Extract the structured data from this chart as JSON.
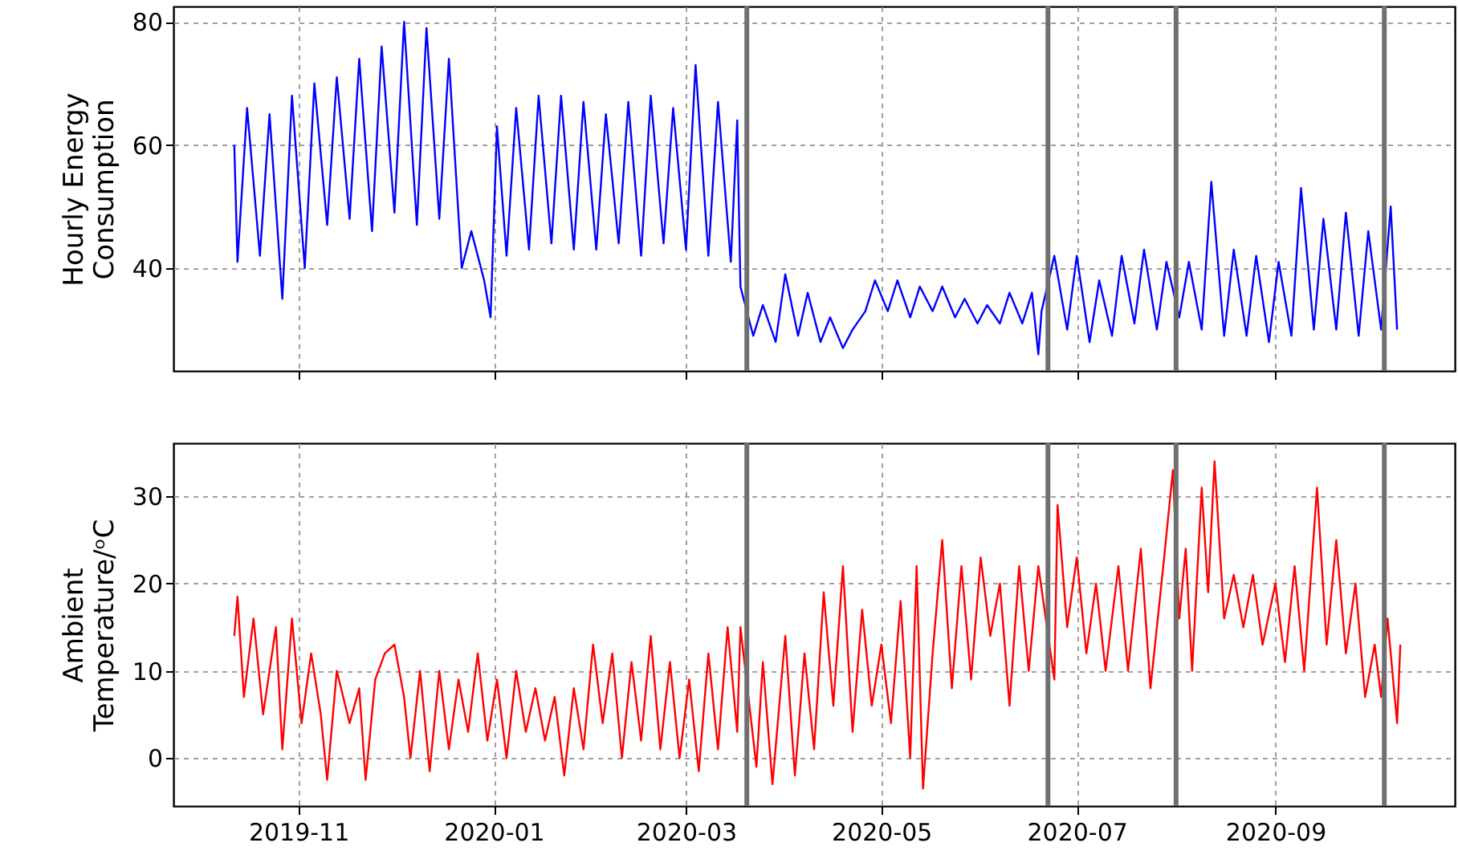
{
  "chart_data": [
    {
      "type": "line",
      "ylabel": "Hourly Energy\nConsumption",
      "xlim": [
        "2019-09-23",
        "2020-10-27"
      ],
      "ylim": [
        23.3,
        82.5
      ],
      "yticks": [
        40,
        60,
        80
      ],
      "xticks": [
        {
          "value": "2019-11-01",
          "label": null
        },
        {
          "value": "2020-01-01",
          "label": null
        },
        {
          "value": "2020-03-01",
          "label": null
        },
        {
          "value": "2020-05-01",
          "label": null
        },
        {
          "value": "2020-07-01",
          "label": null
        },
        {
          "value": "2020-09-01",
          "label": null
        }
      ],
      "tick_labels": "y",
      "grid": true,
      "line_style": "solid",
      "ref_lines": [
        {
          "axis": "x",
          "value": "2020-03-20",
          "color": "#6f6f6f"
        },
        {
          "axis": "x",
          "value": "2020-06-22",
          "color": "#6f6f6f"
        },
        {
          "axis": "x",
          "value": "2020-08-01",
          "color": "#6f6f6f"
        },
        {
          "axis": "x",
          "value": "2020-10-05",
          "color": "#6f6f6f"
        }
      ],
      "series": [
        {
          "color": "#0000ff",
          "x": [
            "2019-10-12",
            "2019-10-13",
            "2019-10-16",
            "2019-10-20",
            "2019-10-23",
            "2019-10-27",
            "2019-10-30",
            "2019-11-03",
            "2019-11-06",
            "2019-11-10",
            "2019-11-13",
            "2019-11-17",
            "2019-11-20",
            "2019-11-24",
            "2019-11-27",
            "2019-12-01",
            "2019-12-04",
            "2019-12-08",
            "2019-12-11",
            "2019-12-15",
            "2019-12-18",
            "2019-12-22",
            "2019-12-25",
            "2019-12-29",
            "2019-12-31",
            "2020-01-02",
            "2020-01-05",
            "2020-01-08",
            "2020-01-12",
            "2020-01-15",
            "2020-01-19",
            "2020-01-22",
            "2020-01-26",
            "2020-01-29",
            "2020-02-02",
            "2020-02-05",
            "2020-02-09",
            "2020-02-12",
            "2020-02-16",
            "2020-02-19",
            "2020-02-23",
            "2020-02-26",
            "2020-03-01",
            "2020-03-04",
            "2020-03-08",
            "2020-03-11",
            "2020-03-15",
            "2020-03-17",
            "2020-03-18",
            "2020-03-22",
            "2020-03-25",
            "2020-03-29",
            "2020-04-01",
            "2020-04-05",
            "2020-04-08",
            "2020-04-12",
            "2020-04-15",
            "2020-04-19",
            "2020-04-22",
            "2020-04-26",
            "2020-04-29",
            "2020-05-03",
            "2020-05-06",
            "2020-05-10",
            "2020-05-13",
            "2020-05-17",
            "2020-05-20",
            "2020-05-24",
            "2020-05-27",
            "2020-05-31",
            "2020-06-03",
            "2020-06-07",
            "2020-06-10",
            "2020-06-14",
            "2020-06-17",
            "2020-06-19",
            "2020-06-20",
            "2020-06-24",
            "2020-06-28",
            "2020-07-01",
            "2020-07-05",
            "2020-07-08",
            "2020-07-12",
            "2020-07-15",
            "2020-07-19",
            "2020-07-22",
            "2020-07-26",
            "2020-07-29",
            "2020-08-02",
            "2020-08-05",
            "2020-08-09",
            "2020-08-12",
            "2020-08-16",
            "2020-08-19",
            "2020-08-23",
            "2020-08-26",
            "2020-08-30",
            "2020-09-02",
            "2020-09-06",
            "2020-09-09",
            "2020-09-13",
            "2020-09-16",
            "2020-09-20",
            "2020-09-23",
            "2020-09-27",
            "2020-09-30",
            "2020-10-04",
            "2020-10-07",
            "2020-10-09"
          ],
          "values": [
            60,
            41,
            66,
            42,
            65,
            35,
            68,
            40,
            70,
            47,
            71,
            48,
            74,
            46,
            76,
            49,
            80,
            47,
            79,
            48,
            74,
            40,
            46,
            38,
            32,
            63,
            42,
            66,
            43,
            68,
            44,
            68,
            43,
            67,
            43,
            65,
            44,
            67,
            42,
            68,
            44,
            66,
            43,
            73,
            42,
            67,
            41,
            64,
            37,
            29,
            34,
            28,
            39,
            29,
            36,
            28,
            32,
            27,
            30,
            33,
            38,
            33,
            38,
            32,
            37,
            33,
            37,
            32,
            35,
            31,
            34,
            31,
            36,
            31,
            36,
            26,
            33,
            42,
            30,
            42,
            28,
            38,
            29,
            42,
            31,
            43,
            30,
            41,
            32,
            41,
            30,
            54,
            29,
            43,
            29,
            42,
            28,
            41,
            29,
            53,
            30,
            48,
            30,
            49,
            29,
            46,
            30,
            50,
            30
          ]
        }
      ]
    },
    {
      "type": "line",
      "ylabel": "Ambient\nTemperature/ᵒC",
      "xlim": [
        "2019-09-23",
        "2020-10-27"
      ],
      "ylim": [
        -5.5,
        36.1
      ],
      "yticks": [
        0,
        10,
        20,
        30
      ],
      "xticks": [
        {
          "value": "2019-11-01",
          "label": "2019-11"
        },
        {
          "value": "2020-01-01",
          "label": "2020-01"
        },
        {
          "value": "2020-03-01",
          "label": "2020-03"
        },
        {
          "value": "2020-05-01",
          "label": "2020-05"
        },
        {
          "value": "2020-07-01",
          "label": "2020-07"
        },
        {
          "value": "2020-09-01",
          "label": "2020-09"
        }
      ],
      "grid": true,
      "line_style": "solid",
      "ref_lines": [
        {
          "axis": "x",
          "value": "2020-03-20",
          "color": "#6f6f6f"
        },
        {
          "axis": "x",
          "value": "2020-06-22",
          "color": "#6f6f6f"
        },
        {
          "axis": "x",
          "value": "2020-08-01",
          "color": "#6f6f6f"
        },
        {
          "axis": "x",
          "value": "2020-10-05",
          "color": "#6f6f6f"
        }
      ],
      "series": [
        {
          "color": "#ff0000",
          "x": [
            "2019-10-12",
            "2019-10-13",
            "2019-10-15",
            "2019-10-18",
            "2019-10-21",
            "2019-10-25",
            "2019-10-27",
            "2019-10-30",
            "2019-11-02",
            "2019-11-05",
            "2019-11-08",
            "2019-11-10",
            "2019-11-13",
            "2019-11-17",
            "2019-11-20",
            "2019-11-22",
            "2019-11-25",
            "2019-11-28",
            "2019-12-01",
            "2019-12-04",
            "2019-12-06",
            "2019-12-09",
            "2019-12-12",
            "2019-12-15",
            "2019-12-18",
            "2019-12-21",
            "2019-12-24",
            "2019-12-27",
            "2019-12-30",
            "2020-01-02",
            "2020-01-05",
            "2020-01-08",
            "2020-01-11",
            "2020-01-14",
            "2020-01-17",
            "2020-01-20",
            "2020-01-23",
            "2020-01-26",
            "2020-01-29",
            "2020-02-01",
            "2020-02-04",
            "2020-02-07",
            "2020-02-10",
            "2020-02-13",
            "2020-02-16",
            "2020-02-19",
            "2020-02-22",
            "2020-02-25",
            "2020-02-28",
            "2020-03-02",
            "2020-03-05",
            "2020-03-08",
            "2020-03-11",
            "2020-03-14",
            "2020-03-17",
            "2020-03-18",
            "2020-03-23",
            "2020-03-25",
            "2020-03-28",
            "2020-04-01",
            "2020-04-04",
            "2020-04-07",
            "2020-04-10",
            "2020-04-13",
            "2020-04-16",
            "2020-04-19",
            "2020-04-22",
            "2020-04-25",
            "2020-04-28",
            "2020-05-01",
            "2020-05-04",
            "2020-05-07",
            "2020-05-10",
            "2020-05-12",
            "2020-05-14",
            "2020-05-17",
            "2020-05-20",
            "2020-05-23",
            "2020-05-26",
            "2020-05-29",
            "2020-06-01",
            "2020-06-04",
            "2020-06-07",
            "2020-06-10",
            "2020-06-13",
            "2020-06-16",
            "2020-06-19",
            "2020-06-24",
            "2020-06-25",
            "2020-06-28",
            "2020-07-01",
            "2020-07-04",
            "2020-07-07",
            "2020-07-10",
            "2020-07-14",
            "2020-07-17",
            "2020-07-21",
            "2020-07-24",
            "2020-07-28",
            "2020-07-31",
            "2020-08-02",
            "2020-08-04",
            "2020-08-06",
            "2020-08-09",
            "2020-08-11",
            "2020-08-13",
            "2020-08-16",
            "2020-08-19",
            "2020-08-22",
            "2020-08-25",
            "2020-08-28",
            "2020-09-01",
            "2020-09-04",
            "2020-09-07",
            "2020-09-10",
            "2020-09-14",
            "2020-09-17",
            "2020-09-20",
            "2020-09-23",
            "2020-09-26",
            "2020-09-29",
            "2020-10-02",
            "2020-10-04",
            "2020-10-06",
            "2020-10-09",
            "2020-10-10"
          ],
          "values": [
            14,
            18.5,
            7,
            16,
            5,
            15,
            1,
            16,
            4,
            12,
            5,
            -2.5,
            10,
            4,
            8,
            -2.5,
            9,
            12,
            13,
            7,
            0,
            10,
            -1.5,
            10,
            1,
            9,
            3,
            12,
            2,
            9,
            0,
            10,
            3,
            8,
            2,
            7,
            -2,
            8,
            1,
            13,
            4,
            12,
            0,
            11,
            2,
            14,
            1,
            11,
            0,
            9,
            -1.5,
            12,
            1,
            15,
            3,
            15,
            -1,
            11,
            -3,
            14,
            -2,
            12,
            1,
            19,
            6,
            22,
            3,
            17,
            6,
            13,
            4,
            18,
            0,
            22,
            -3.5,
            12,
            25,
            8,
            22,
            9,
            23,
            14,
            20,
            6,
            22,
            10,
            22,
            9,
            29,
            15,
            23,
            12,
            20,
            10,
            22,
            10,
            24,
            8,
            22,
            33,
            16,
            24,
            10,
            31,
            19,
            34,
            16,
            21,
            15,
            21,
            13,
            20,
            11,
            22,
            10,
            31,
            13,
            25,
            12,
            20,
            7,
            13,
            7,
            16,
            4,
            13
          ]
        }
      ]
    }
  ]
}
